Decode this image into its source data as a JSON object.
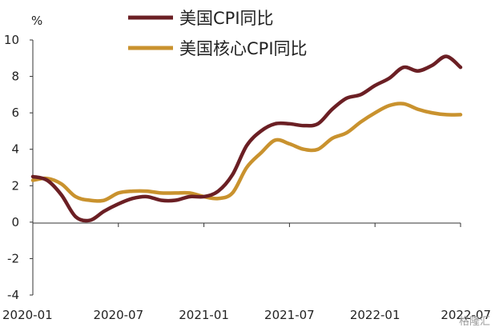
{
  "chart_data": {
    "type": "line",
    "ylabel": "%",
    "ylim": [
      -4,
      10
    ],
    "y_ticks": [
      -4,
      -2,
      0,
      2,
      4,
      6,
      8,
      10
    ],
    "x_tick_labels": [
      "2020-01",
      "2020-07",
      "2021-01",
      "2021-07",
      "2022-01",
      "2022-07"
    ],
    "x": [
      "2020-01",
      "2020-02",
      "2020-03",
      "2020-04",
      "2020-05",
      "2020-06",
      "2020-07",
      "2020-08",
      "2020-09",
      "2020-10",
      "2020-11",
      "2020-12",
      "2021-01",
      "2021-02",
      "2021-03",
      "2021-04",
      "2021-05",
      "2021-06",
      "2021-07",
      "2021-08",
      "2021-09",
      "2021-10",
      "2021-11",
      "2021-12",
      "2022-01",
      "2022-02",
      "2022-03",
      "2022-04",
      "2022-05",
      "2022-06",
      "2022-07"
    ],
    "legend_position": "top",
    "grid": false,
    "series": [
      {
        "name": "美国CPI同比",
        "color": "#6b1f24",
        "values": [
          2.5,
          2.3,
          1.5,
          0.3,
          0.1,
          0.6,
          1.0,
          1.3,
          1.4,
          1.2,
          1.2,
          1.4,
          1.4,
          1.7,
          2.6,
          4.2,
          5.0,
          5.4,
          5.4,
          5.3,
          5.4,
          6.2,
          6.8,
          7.0,
          7.5,
          7.9,
          8.5,
          8.3,
          8.6,
          9.1,
          8.5
        ]
      },
      {
        "name": "美国核心CPI同比",
        "color": "#c9922e",
        "values": [
          2.3,
          2.4,
          2.1,
          1.4,
          1.2,
          1.2,
          1.6,
          1.7,
          1.7,
          1.6,
          1.6,
          1.6,
          1.4,
          1.3,
          1.6,
          3.0,
          3.8,
          4.5,
          4.3,
          4.0,
          4.0,
          4.6,
          4.9,
          5.5,
          6.0,
          6.4,
          6.5,
          6.2,
          6.0,
          5.9,
          5.9
        ]
      }
    ]
  },
  "watermark": "格隆汇"
}
